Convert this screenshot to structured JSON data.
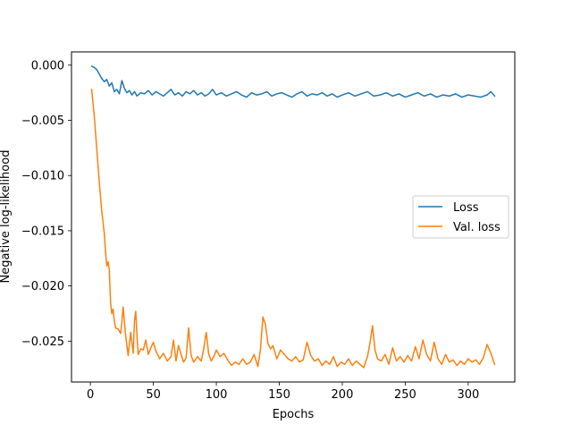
{
  "chart_data": {
    "type": "line",
    "title": "",
    "xlabel": "Epochs",
    "ylabel": "Negative log-likelihood",
    "xlim": [
      -15,
      337
    ],
    "ylim": [
      -0.0287,
      0.0012
    ],
    "xticks": [
      0,
      50,
      100,
      150,
      200,
      250,
      300
    ],
    "xtick_labels": [
      "0",
      "50",
      "100",
      "150",
      "200",
      "250",
      "300"
    ],
    "yticks": [
      0.0,
      -0.005,
      -0.01,
      -0.015,
      -0.02,
      -0.025
    ],
    "ytick_labels": [
      "0.000",
      "−0.005",
      "−0.010",
      "−0.015",
      "−0.020",
      "−0.025"
    ],
    "grid": false,
    "legend": {
      "position": "center-right"
    },
    "series": [
      {
        "name": "Loss",
        "color": "#1f77b4",
        "x": [
          1,
          3,
          5,
          7,
          9,
          11,
          13,
          15,
          17,
          19,
          21,
          23,
          25,
          27,
          29,
          31,
          33,
          35,
          37,
          40,
          43,
          46,
          49,
          52,
          55,
          58,
          61,
          64,
          67,
          70,
          73,
          76,
          79,
          82,
          85,
          88,
          91,
          94,
          97,
          100,
          104,
          108,
          112,
          116,
          120,
          124,
          128,
          132,
          136,
          140,
          144,
          148,
          152,
          156,
          160,
          164,
          168,
          172,
          176,
          180,
          184,
          188,
          192,
          196,
          200,
          205,
          210,
          215,
          220,
          225,
          230,
          235,
          240,
          245,
          250,
          255,
          260,
          265,
          270,
          275,
          280,
          285,
          290,
          295,
          300,
          305,
          310,
          315,
          318,
          321
        ],
        "y": [
          -0.0001,
          -0.0002,
          -0.0004,
          -0.0008,
          -0.0012,
          -0.0015,
          -0.0013,
          -0.0019,
          -0.0016,
          -0.0024,
          -0.0022,
          -0.0026,
          -0.0014,
          -0.0021,
          -0.0025,
          -0.0023,
          -0.0027,
          -0.0024,
          -0.0028,
          -0.0025,
          -0.0026,
          -0.0023,
          -0.0027,
          -0.0024,
          -0.0026,
          -0.0028,
          -0.0025,
          -0.0022,
          -0.0027,
          -0.0025,
          -0.0028,
          -0.0024,
          -0.0026,
          -0.0023,
          -0.0027,
          -0.0025,
          -0.0028,
          -0.0026,
          -0.0022,
          -0.0027,
          -0.0025,
          -0.0028,
          -0.0026,
          -0.0024,
          -0.0027,
          -0.0029,
          -0.0025,
          -0.0027,
          -0.0026,
          -0.0024,
          -0.0028,
          -0.0026,
          -0.0025,
          -0.0027,
          -0.0029,
          -0.0026,
          -0.0024,
          -0.0028,
          -0.0026,
          -0.0027,
          -0.0025,
          -0.0028,
          -0.0026,
          -0.0029,
          -0.0027,
          -0.0025,
          -0.0028,
          -0.0026,
          -0.0024,
          -0.0028,
          -0.0027,
          -0.0025,
          -0.0028,
          -0.0026,
          -0.0029,
          -0.0027,
          -0.0025,
          -0.0028,
          -0.0026,
          -0.0029,
          -0.0027,
          -0.0028,
          -0.0026,
          -0.0029,
          -0.0027,
          -0.0028,
          -0.0029,
          -0.0027,
          -0.0024,
          -0.0028
        ]
      },
      {
        "name": "Val. loss",
        "color": "#ff7f0e",
        "x": [
          1,
          3,
          5,
          7,
          9,
          11,
          12,
          13,
          14,
          15,
          16,
          17,
          18,
          19,
          20,
          22,
          24,
          25,
          26,
          27,
          28,
          30,
          32,
          34,
          35,
          36,
          37,
          38,
          40,
          42,
          44,
          46,
          48,
          50,
          52,
          55,
          58,
          61,
          64,
          66,
          68,
          70,
          72,
          74,
          76,
          78,
          80,
          82,
          85,
          88,
          90,
          92,
          94,
          96,
          98,
          100,
          103,
          106,
          109,
          112,
          115,
          118,
          121,
          124,
          127,
          130,
          133,
          135,
          137,
          139,
          141,
          143,
          145,
          148,
          151,
          154,
          157,
          160,
          163,
          166,
          169,
          172,
          175,
          178,
          181,
          184,
          187,
          190,
          193,
          196,
          199,
          202,
          205,
          208,
          211,
          214,
          217,
          220,
          222,
          224,
          226,
          228,
          231,
          234,
          237,
          240,
          243,
          246,
          249,
          252,
          255,
          258,
          261,
          264,
          267,
          270,
          273,
          276,
          279,
          282,
          285,
          288,
          291,
          294,
          297,
          300,
          303,
          306,
          309,
          312,
          315,
          318,
          321
        ],
        "y": [
          -0.0022,
          -0.0045,
          -0.0075,
          -0.0105,
          -0.0132,
          -0.0152,
          -0.0168,
          -0.0182,
          -0.0178,
          -0.0185,
          -0.0215,
          -0.0225,
          -0.0221,
          -0.0232,
          -0.0238,
          -0.0239,
          -0.0243,
          -0.0233,
          -0.0219,
          -0.0232,
          -0.0245,
          -0.0263,
          -0.0242,
          -0.0261,
          -0.0232,
          -0.0223,
          -0.0245,
          -0.0262,
          -0.0257,
          -0.0258,
          -0.0249,
          -0.0262,
          -0.0256,
          -0.0251,
          -0.0259,
          -0.0266,
          -0.0261,
          -0.0268,
          -0.0264,
          -0.0249,
          -0.0268,
          -0.0254,
          -0.0262,
          -0.0269,
          -0.0265,
          -0.0238,
          -0.0263,
          -0.0269,
          -0.0264,
          -0.0268,
          -0.0257,
          -0.0242,
          -0.0262,
          -0.0268,
          -0.0264,
          -0.0258,
          -0.0264,
          -0.0261,
          -0.0267,
          -0.0272,
          -0.0269,
          -0.0271,
          -0.0266,
          -0.0271,
          -0.0269,
          -0.0262,
          -0.0273,
          -0.0258,
          -0.0228,
          -0.0235,
          -0.0252,
          -0.0257,
          -0.0254,
          -0.0266,
          -0.0258,
          -0.0262,
          -0.0266,
          -0.0268,
          -0.0264,
          -0.0269,
          -0.0267,
          -0.0251,
          -0.0263,
          -0.0268,
          -0.0266,
          -0.0272,
          -0.0268,
          -0.0271,
          -0.0264,
          -0.0273,
          -0.0269,
          -0.0271,
          -0.0266,
          -0.0272,
          -0.0268,
          -0.0271,
          -0.0274,
          -0.0264,
          -0.0252,
          -0.0236,
          -0.0258,
          -0.0266,
          -0.0268,
          -0.0262,
          -0.0271,
          -0.0256,
          -0.0268,
          -0.0264,
          -0.0269,
          -0.0263,
          -0.0268,
          -0.0255,
          -0.0266,
          -0.0249,
          -0.0262,
          -0.0268,
          -0.0251,
          -0.0266,
          -0.0271,
          -0.0262,
          -0.0269,
          -0.0267,
          -0.0272,
          -0.0268,
          -0.0271,
          -0.0266,
          -0.0269,
          -0.0267,
          -0.0271,
          -0.0265,
          -0.0253,
          -0.0261,
          -0.0271
        ]
      }
    ]
  }
}
